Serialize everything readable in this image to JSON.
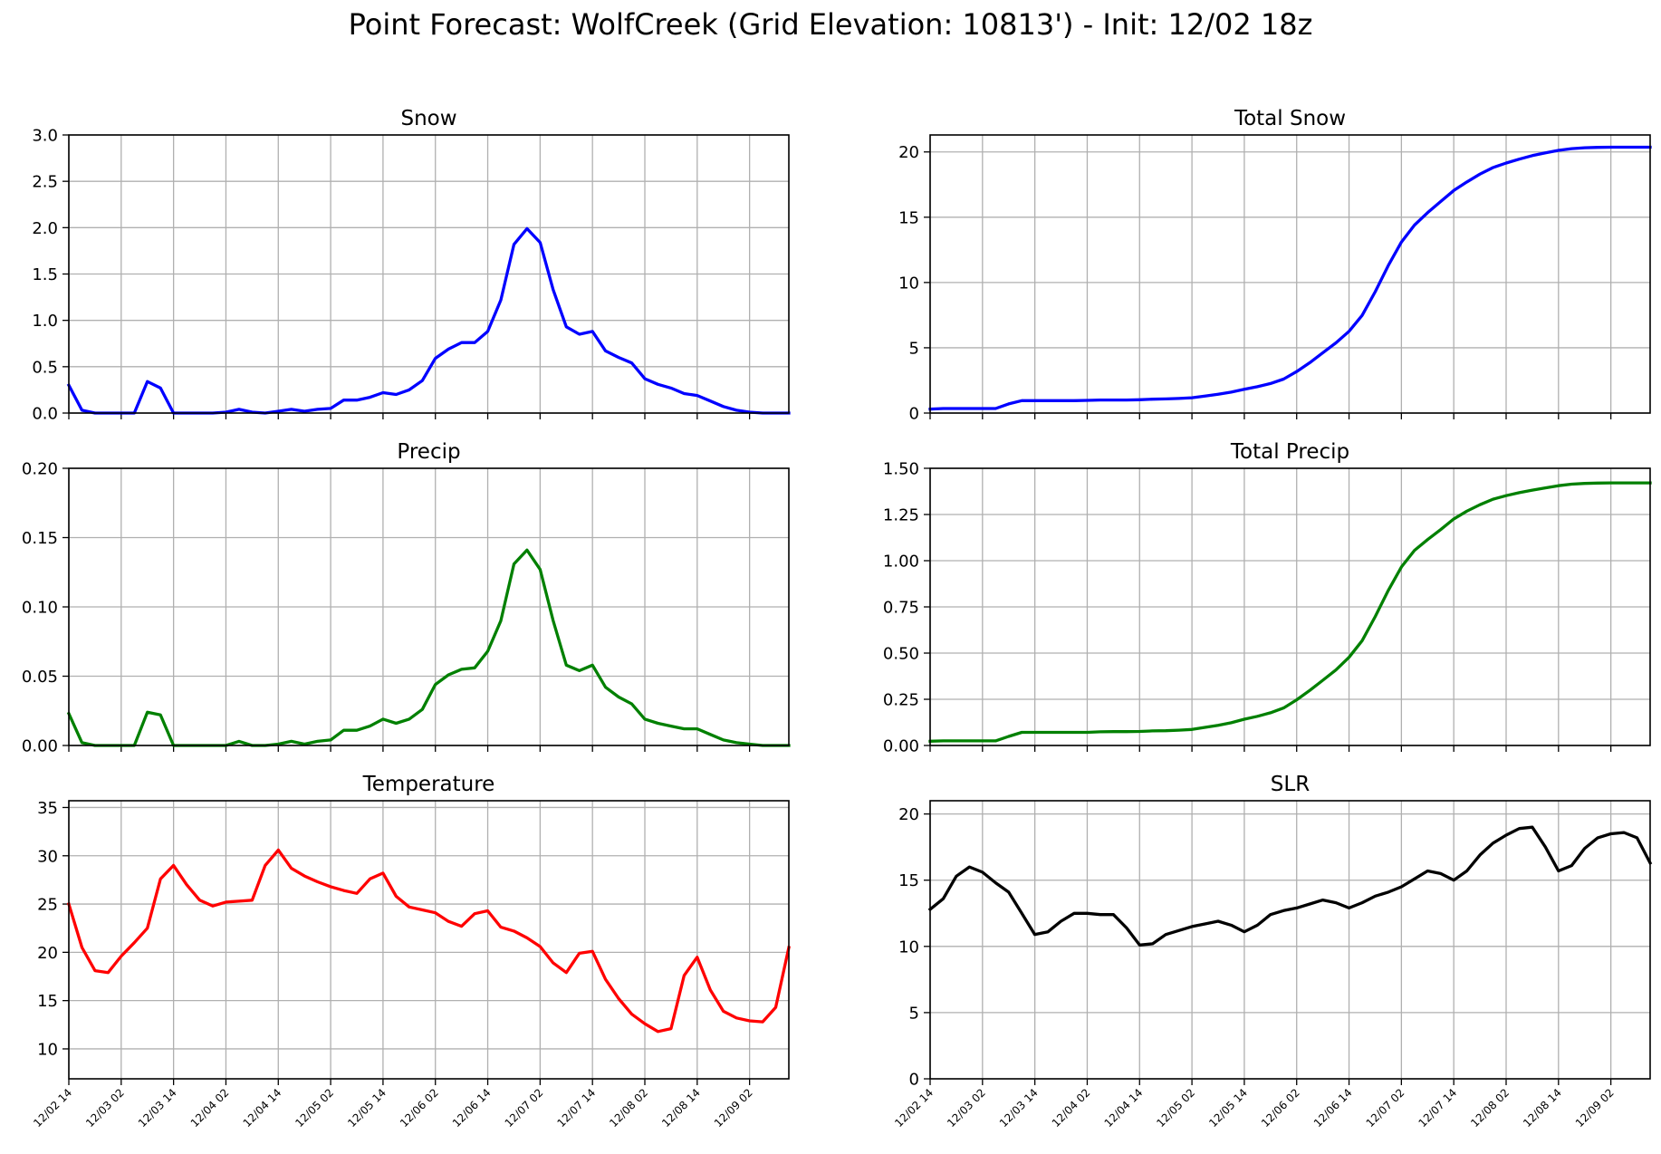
{
  "title": "Point Forecast: WolfCreek (Grid Elevation: 10813') - Init: 12/02 18z",
  "x_tick_labels": [
    "12/02 14",
    "12/03 02",
    "12/03 14",
    "12/04 02",
    "12/04 14",
    "12/05 02",
    "12/05 14",
    "12/06 02",
    "12/06 14",
    "12/07 02",
    "12/07 14",
    "12/08 02",
    "12/08 14",
    "12/09 02"
  ],
  "chart_data": [
    {
      "type": "line",
      "title": "Snow",
      "color": "#0000ff",
      "ylim": [
        0,
        3.0
      ],
      "yticks": [
        "0.0",
        "0.5",
        "1.0",
        "1.5",
        "2.0",
        "2.5",
        "3.0"
      ],
      "grid": true,
      "values": [
        0.3,
        0.03,
        0,
        0,
        0,
        0,
        0.34,
        0.27,
        0,
        0,
        0,
        0,
        0.01,
        0.04,
        0.01,
        0,
        0.02,
        0.04,
        0.02,
        0.04,
        0.05,
        0.14,
        0.14,
        0.17,
        0.22,
        0.2,
        0.25,
        0.35,
        0.59,
        0.69,
        0.76,
        0.76,
        0.88,
        1.22,
        1.82,
        1.99,
        1.84,
        1.33,
        0.93,
        0.85,
        0.88,
        0.67,
        0.6,
        0.54,
        0.37,
        0.31,
        0.27,
        0.21,
        0.19,
        0.13,
        0.07,
        0.03,
        0.01,
        0,
        0,
        0
      ]
    },
    {
      "type": "line",
      "title": "Total Snow",
      "color": "#0000ff",
      "ylim": [
        0,
        21.3
      ],
      "yticks": [
        "0",
        "5",
        "10",
        "15",
        "20"
      ],
      "grid": true,
      "values": [
        0.3,
        0.35,
        0.35,
        0.35,
        0.35,
        0.35,
        0.7,
        0.95,
        0.95,
        0.95,
        0.95,
        0.95,
        0.97,
        1.0,
        1.0,
        1.0,
        1.02,
        1.06,
        1.08,
        1.12,
        1.17,
        1.3,
        1.44,
        1.6,
        1.82,
        2.02,
        2.26,
        2.6,
        3.18,
        3.86,
        4.62,
        5.38,
        6.26,
        7.48,
        9.3,
        11.3,
        13.1,
        14.4,
        15.35,
        16.2,
        17.05,
        17.7,
        18.3,
        18.8,
        19.15,
        19.45,
        19.72,
        19.93,
        20.12,
        20.25,
        20.32,
        20.35,
        20.36,
        20.36,
        20.36,
        20.36
      ]
    },
    {
      "type": "line",
      "title": "Precip",
      "color": "#008000",
      "ylim": [
        0,
        0.2
      ],
      "yticks": [
        "0.00",
        "0.05",
        "0.10",
        "0.15",
        "0.20"
      ],
      "grid": true,
      "values": [
        0.023,
        0.002,
        0,
        0,
        0,
        0,
        0.024,
        0.022,
        0,
        0,
        0,
        0,
        0,
        0.003,
        0,
        0,
        0.001,
        0.003,
        0.001,
        0.003,
        0.004,
        0.011,
        0.011,
        0.014,
        0.019,
        0.016,
        0.019,
        0.026,
        0.044,
        0.051,
        0.055,
        0.056,
        0.068,
        0.09,
        0.131,
        0.141,
        0.127,
        0.09,
        0.058,
        0.054,
        0.058,
        0.042,
        0.035,
        0.03,
        0.019,
        0.016,
        0.014,
        0.012,
        0.012,
        0.008,
        0.004,
        0.002,
        0.001,
        0,
        0,
        0
      ]
    },
    {
      "type": "line",
      "title": "Total Precip",
      "color": "#008000",
      "ylim": [
        0,
        1.5
      ],
      "yticks": [
        "0.00",
        "0.25",
        "0.50",
        "0.75",
        "1.00",
        "1.25",
        "1.50"
      ],
      "grid": true,
      "values": [
        0.023,
        0.025,
        0.025,
        0.025,
        0.025,
        0.025,
        0.049,
        0.071,
        0.071,
        0.071,
        0.071,
        0.071,
        0.071,
        0.074,
        0.075,
        0.075,
        0.076,
        0.079,
        0.08,
        0.083,
        0.087,
        0.098,
        0.109,
        0.123,
        0.142,
        0.158,
        0.177,
        0.203,
        0.247,
        0.298,
        0.353,
        0.409,
        0.477,
        0.567,
        0.698,
        0.839,
        0.966,
        1.056,
        1.114,
        1.168,
        1.226,
        1.268,
        1.303,
        1.333,
        1.352,
        1.368,
        1.382,
        1.394,
        1.406,
        1.414,
        1.418,
        1.42,
        1.421,
        1.421,
        1.421,
        1.421
      ]
    },
    {
      "type": "line",
      "title": "Temperature",
      "color": "#ff0000",
      "ylim": [
        6.9,
        35.7
      ],
      "yticks": [
        "10",
        "15",
        "20",
        "25",
        "30",
        "35"
      ],
      "grid": true,
      "values": [
        25,
        20.5,
        18.1,
        17.9,
        19.6,
        21,
        22.5,
        27.6,
        29,
        27,
        25.4,
        24.8,
        25.2,
        25.3,
        25.4,
        29,
        30.6,
        28.7,
        27.9,
        27.3,
        26.8,
        26.4,
        26.1,
        27.6,
        28.2,
        25.8,
        24.7,
        24.4,
        24.1,
        23.2,
        22.7,
        24,
        24.3,
        22.6,
        22.2,
        21.5,
        20.6,
        18.9,
        17.9,
        19.9,
        20.1,
        17.2,
        15.2,
        13.6,
        12.6,
        11.8,
        12.1,
        17.6,
        19.5,
        16.1,
        13.9,
        13.2,
        12.9,
        12.8,
        14.3,
        20.5
      ]
    },
    {
      "type": "line",
      "title": "SLR",
      "color": "#000000",
      "ylim": [
        0,
        21
      ],
      "yticks": [
        "0",
        "5",
        "10",
        "15",
        "20"
      ],
      "grid": true,
      "values": [
        12.8,
        13.6,
        15.3,
        16,
        15.6,
        14.8,
        14.1,
        12.5,
        10.9,
        11.1,
        11.9,
        12.5,
        12.5,
        12.4,
        12.4,
        11.4,
        10.1,
        10.2,
        10.9,
        11.2,
        11.5,
        11.7,
        11.9,
        11.6,
        11.1,
        11.6,
        12.4,
        12.7,
        12.9,
        13.2,
        13.5,
        13.3,
        12.9,
        13.3,
        13.8,
        14.1,
        14.5,
        15.1,
        15.7,
        15.5,
        15,
        15.7,
        16.9,
        17.8,
        18.4,
        18.9,
        19,
        17.5,
        15.7,
        16.1,
        17.4,
        18.2,
        18.5,
        18.6,
        18.2,
        16.3
      ]
    }
  ]
}
